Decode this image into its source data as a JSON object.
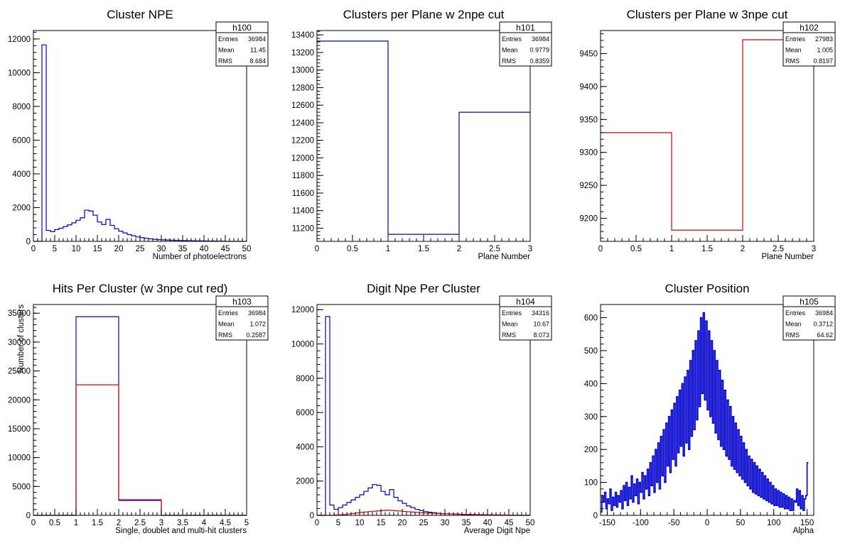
{
  "colors": {
    "primary": "#0000cc",
    "secondary": "#dd0000",
    "axis": "#000000"
  },
  "chart_data": [
    {
      "type": "histogram",
      "title": "Cluster NPE",
      "xlabel": "Number of photoelectrons",
      "ylabel": "",
      "xlim": [
        0,
        50
      ],
      "ylim": [
        0,
        12500
      ],
      "xticks": [
        0,
        5,
        10,
        15,
        20,
        25,
        30,
        35,
        40,
        45,
        50
      ],
      "yticks": [
        0,
        2000,
        4000,
        6000,
        8000,
        10000,
        12000
      ],
      "stats": {
        "name": "h100",
        "rows": [
          [
            "Entries",
            "36984"
          ],
          [
            "Mean",
            "11.45"
          ],
          [
            "RMS",
            "8.684"
          ]
        ]
      },
      "series": [
        {
          "color": "blue",
          "bin_width": 1,
          "x_start": 0,
          "values": [
            0,
            0,
            11650,
            650,
            580,
            700,
            780,
            880,
            980,
            1100,
            1250,
            1400,
            1850,
            1800,
            1550,
            1150,
            1000,
            1300,
            950,
            750,
            600,
            500,
            400,
            330,
            260,
            220,
            180,
            150,
            120,
            100,
            90,
            80,
            70,
            60,
            50,
            45,
            40,
            35,
            30,
            25,
            20,
            18,
            15,
            12,
            10,
            0,
            0,
            0,
            0,
            0
          ]
        }
      ]
    },
    {
      "type": "histogram",
      "title": "Clusters per Plane w 2npe cut",
      "xlabel": "Plane Number",
      "ylabel": "",
      "xlim": [
        0,
        3
      ],
      "ylim": [
        11050,
        13450
      ],
      "xticks": [
        0,
        0.5,
        1,
        1.5,
        2,
        2.5,
        3
      ],
      "yticks": [
        11200,
        11400,
        11600,
        11800,
        12000,
        12200,
        12400,
        12600,
        12800,
        13000,
        13200,
        13400
      ],
      "stats": {
        "name": "h101",
        "rows": [
          [
            "Entries",
            "36984"
          ],
          [
            "Mean",
            "0.9779"
          ],
          [
            "RMS",
            "0.8359"
          ]
        ]
      },
      "series": [
        {
          "color": "blue",
          "bin_width": 1,
          "x_start": 0,
          "values": [
            13330,
            11130,
            12520
          ]
        }
      ]
    },
    {
      "type": "histogram",
      "title": "Clusters per Plane w 3npe cut",
      "xlabel": "Plane Number",
      "ylabel": "",
      "xlim": [
        0,
        3
      ],
      "ylim": [
        9165,
        9485
      ],
      "xticks": [
        0,
        0.5,
        1,
        1.5,
        2,
        2.5,
        3
      ],
      "yticks": [
        9200,
        9250,
        9300,
        9350,
        9400,
        9450
      ],
      "stats": {
        "name": "h102",
        "rows": [
          [
            "Entries",
            "27983"
          ],
          [
            "Mean",
            "1.005"
          ],
          [
            "RMS",
            "0.8197"
          ]
        ]
      },
      "series": [
        {
          "color": "red",
          "bin_width": 1,
          "x_start": 0,
          "values": [
            9330,
            9182,
            9471
          ]
        }
      ]
    },
    {
      "type": "histogram",
      "title": "Hits Per Cluster (w 3npe cut red)",
      "xlabel": "Single, doublet and multi-hit clusters",
      "ylabel": "Number of clusters",
      "xlim": [
        0,
        5
      ],
      "ylim": [
        0,
        36500
      ],
      "xticks": [
        0,
        0.5,
        1,
        1.5,
        2,
        2.5,
        3,
        3.5,
        4,
        4.5,
        5
      ],
      "yticks": [
        0,
        5000,
        10000,
        15000,
        20000,
        25000,
        30000,
        35000
      ],
      "stats": {
        "name": "h103",
        "rows": [
          [
            "Entries",
            "36984"
          ],
          [
            "Mean",
            "1.072"
          ],
          [
            "RMS",
            "0.2587"
          ]
        ]
      },
      "series": [
        {
          "color": "blue",
          "bin_width": 1,
          "x_start": 0,
          "values": [
            0,
            34400,
            2580,
            0,
            0
          ]
        },
        {
          "color": "red",
          "bin_width": 1,
          "x_start": 0,
          "values": [
            0,
            22600,
            2700,
            0,
            0
          ]
        }
      ]
    },
    {
      "type": "histogram",
      "title": "Digit Npe Per Cluster",
      "xlabel": "Average Digit Npe",
      "ylabel": "",
      "xlim": [
        0,
        50
      ],
      "ylim": [
        0,
        12300
      ],
      "xticks": [
        0,
        5,
        10,
        15,
        20,
        25,
        30,
        35,
        40,
        45,
        50
      ],
      "yticks": [
        0,
        2000,
        4000,
        6000,
        8000,
        10000,
        12000
      ],
      "stats": {
        "name": "h104",
        "rows": [
          [
            "Entries",
            "34316"
          ],
          [
            "Mean",
            "10.67"
          ],
          [
            "RMS",
            "8.073"
          ]
        ]
      },
      "series": [
        {
          "color": "blue",
          "bin_width": 1,
          "x_start": 0,
          "values": [
            0,
            0,
            11600,
            600,
            350,
            450,
            600,
            750,
            900,
            1050,
            1200,
            1400,
            1600,
            1800,
            1750,
            1400,
            1200,
            1500,
            1050,
            850,
            700,
            550,
            450,
            350,
            280,
            220,
            180,
            150,
            120,
            100,
            90,
            80,
            70,
            60,
            50,
            45,
            40,
            35,
            30,
            25,
            20,
            18,
            15,
            12,
            10,
            0,
            0,
            0,
            0,
            0
          ]
        },
        {
          "color": "red",
          "bin_width": 1,
          "x_start": 0,
          "values": [
            0,
            0,
            0,
            0,
            20,
            30,
            50,
            80,
            110,
            140,
            170,
            200,
            220,
            240,
            260,
            280,
            300,
            290,
            270,
            250,
            230,
            210,
            190,
            170,
            150,
            140,
            130,
            120,
            110,
            100,
            90,
            85,
            80,
            70,
            60,
            55,
            50,
            45,
            40,
            35,
            30,
            25,
            20,
            15,
            10,
            5,
            0,
            0,
            0,
            0
          ]
        }
      ]
    },
    {
      "type": "histogram",
      "title": "Cluster Position",
      "xlabel": "Alpha",
      "ylabel": "",
      "xlim": [
        -160,
        160
      ],
      "ylim": [
        0,
        640
      ],
      "xticks": [
        -150,
        -100,
        -50,
        0,
        50,
        100,
        150
      ],
      "yticks": [
        0,
        100,
        200,
        300,
        400,
        500,
        600
      ],
      "stats": {
        "name": "h105",
        "rows": [
          [
            "Entries",
            "36984"
          ],
          [
            "Mean",
            "0.3712"
          ],
          [
            "RMS",
            "64.62"
          ]
        ]
      },
      "series": [
        {
          "color": "blue",
          "bin_width": 2,
          "x_start": -160,
          "values": [
            10,
            60,
            40,
            70,
            20,
            50,
            35,
            80,
            15,
            55,
            30,
            70,
            25,
            60,
            40,
            75,
            20,
            90,
            45,
            100,
            30,
            85,
            50,
            120,
            40,
            95,
            60,
            110,
            35,
            100,
            70,
            130,
            50,
            120,
            80,
            140,
            60,
            160,
            90,
            180,
            70,
            200,
            100,
            220,
            80,
            240,
            120,
            260,
            100,
            280,
            150,
            300,
            130,
            320,
            170,
            340,
            150,
            360,
            190,
            380,
            210,
            400,
            180,
            420,
            220,
            440,
            200,
            470,
            240,
            500,
            260,
            530,
            290,
            560,
            330,
            600,
            370,
            615,
            350,
            590,
            320,
            560,
            300,
            530,
            280,
            500,
            250,
            470,
            230,
            440,
            210,
            410,
            200,
            380,
            180,
            350,
            170,
            330,
            150,
            300,
            140,
            280,
            130,
            260,
            120,
            240,
            110,
            220,
            100,
            200,
            90,
            180,
            80,
            170,
            70,
            160,
            65,
            150,
            60,
            140,
            55,
            130,
            50,
            120,
            45,
            110,
            40,
            100,
            35,
            90,
            30,
            80,
            30,
            75,
            25,
            70,
            25,
            65,
            20,
            60,
            20,
            55,
            15,
            50,
            15,
            45,
            40,
            80,
            30,
            75,
            20,
            60,
            15,
            50,
            60,
            160
          ]
        }
      ]
    }
  ]
}
